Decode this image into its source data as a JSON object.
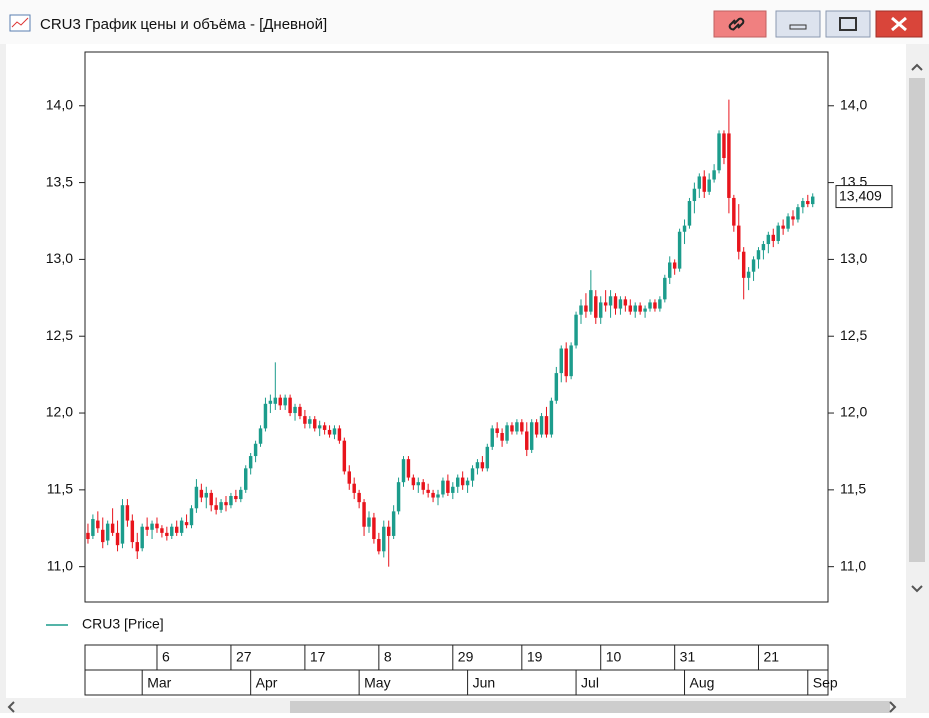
{
  "window_title": "CRU3 График цены и объёма - [Дневной]",
  "chart_data": {
    "type": "candlestick",
    "legend": "CRU3 [Price]",
    "up_color": "#1c9c8c",
    "down_color": "#e8141c",
    "ylim": [
      10.77,
      14.35
    ],
    "yticks": [
      {
        "value": 11,
        "label": "11,0"
      },
      {
        "value": 11.5,
        "label": "11,5"
      },
      {
        "value": 12,
        "label": "12,0"
      },
      {
        "value": 12.5,
        "label": "12,5"
      },
      {
        "value": 13,
        "label": "13,0"
      },
      {
        "value": 13.5,
        "label": "13,5"
      },
      {
        "value": 14,
        "label": "14,0"
      }
    ],
    "last_price": {
      "value": 13.409,
      "label": "13,409"
    },
    "xlim": [
      -0.6,
      150.1
    ],
    "xticks": [
      {
        "value": 14,
        "label": "6"
      },
      {
        "value": 29,
        "label": "27"
      },
      {
        "value": 44,
        "label": "17"
      },
      {
        "value": 59,
        "label": "8"
      },
      {
        "value": 74,
        "label": "29"
      },
      {
        "value": 88,
        "label": "19"
      },
      {
        "value": 104,
        "label": "10"
      },
      {
        "value": 119,
        "label": "31"
      },
      {
        "value": 136,
        "label": "21"
      }
    ],
    "month_ticks": [
      {
        "value": 11,
        "label": "Mar"
      },
      {
        "value": 33,
        "label": "Apr"
      },
      {
        "value": 55,
        "label": "May"
      },
      {
        "value": 77,
        "label": "Jun"
      },
      {
        "value": 99,
        "label": "Jul"
      },
      {
        "value": 121,
        "label": "Aug"
      },
      {
        "value": 146,
        "label": "Sep"
      }
    ],
    "x": [
      0,
      1,
      2,
      3,
      4,
      5,
      6,
      7,
      8,
      9,
      10,
      11,
      12,
      13,
      14,
      15,
      16,
      17,
      18,
      19,
      20,
      21,
      22,
      23,
      24,
      25,
      26,
      27,
      28,
      29,
      30,
      31,
      32,
      33,
      34,
      35,
      36,
      37,
      38,
      39,
      40,
      41,
      42,
      43,
      44,
      45,
      46,
      47,
      48,
      49,
      50,
      51,
      52,
      53,
      54,
      55,
      56,
      57,
      58,
      59,
      60,
      61,
      62,
      63,
      64,
      65,
      66,
      67,
      68,
      69,
      70,
      71,
      72,
      73,
      74,
      75,
      76,
      77,
      78,
      79,
      80,
      81,
      82,
      83,
      84,
      85,
      86,
      87,
      88,
      89,
      90,
      91,
      92,
      93,
      94,
      95,
      96,
      97,
      98,
      99,
      100,
      101,
      102,
      103,
      104,
      105,
      106,
      107,
      108,
      109,
      110,
      111,
      112,
      113,
      114,
      115,
      116,
      117,
      118,
      119,
      120,
      121,
      122,
      123,
      124,
      125,
      126,
      127,
      128,
      129,
      130,
      131,
      132,
      133,
      134,
      135,
      136,
      137,
      138,
      139,
      140,
      141,
      142,
      143,
      144,
      145,
      146,
      147
    ],
    "ohlc": [
      [
        11.22,
        11.28,
        11.15,
        11.18
      ],
      [
        11.2,
        11.34,
        11.18,
        11.31
      ],
      [
        11.3,
        11.36,
        11.22,
        11.25
      ],
      [
        11.24,
        11.32,
        11.12,
        11.16
      ],
      [
        11.17,
        11.3,
        11.14,
        11.28
      ],
      [
        11.28,
        11.38,
        11.2,
        11.22
      ],
      [
        11.22,
        11.3,
        11.1,
        11.14
      ],
      [
        11.15,
        11.44,
        11.12,
        11.4
      ],
      [
        11.4,
        11.44,
        11.26,
        11.3
      ],
      [
        11.3,
        11.34,
        11.12,
        11.16
      ],
      [
        11.16,
        11.22,
        11.05,
        11.1
      ],
      [
        11.12,
        11.28,
        11.1,
        11.26
      ],
      [
        11.26,
        11.32,
        11.2,
        11.24
      ],
      [
        11.24,
        11.3,
        11.18,
        11.28
      ],
      [
        11.28,
        11.32,
        11.22,
        11.25
      ],
      [
        11.25,
        11.27,
        11.19,
        11.22
      ],
      [
        11.22,
        11.26,
        11.17,
        11.2
      ],
      [
        11.2,
        11.28,
        11.18,
        11.26
      ],
      [
        11.26,
        11.3,
        11.2,
        11.22
      ],
      [
        11.22,
        11.32,
        11.2,
        11.3
      ],
      [
        11.29,
        11.34,
        11.25,
        11.27
      ],
      [
        11.27,
        11.4,
        11.25,
        11.38
      ],
      [
        11.38,
        11.57,
        11.35,
        11.52
      ],
      [
        11.5,
        11.54,
        11.42,
        11.45
      ],
      [
        11.45,
        11.52,
        11.38,
        11.48
      ],
      [
        11.48,
        11.5,
        11.36,
        11.4
      ],
      [
        11.4,
        11.45,
        11.34,
        11.37
      ],
      [
        11.37,
        11.44,
        11.35,
        11.42
      ],
      [
        11.42,
        11.46,
        11.36,
        11.4
      ],
      [
        11.4,
        11.48,
        11.38,
        11.46
      ],
      [
        11.46,
        11.5,
        11.42,
        11.44
      ],
      [
        11.44,
        11.52,
        11.42,
        11.5
      ],
      [
        11.5,
        11.66,
        11.48,
        11.64
      ],
      [
        11.64,
        11.74,
        11.6,
        11.72
      ],
      [
        11.72,
        11.82,
        11.68,
        11.8
      ],
      [
        11.8,
        11.92,
        11.78,
        11.9
      ],
      [
        11.9,
        12.1,
        11.88,
        12.06
      ],
      [
        12.06,
        12.12,
        12.0,
        12.08
      ],
      [
        12.06,
        12.33,
        12.02,
        12.1
      ],
      [
        12.1,
        12.12,
        12.02,
        12.05
      ],
      [
        12.05,
        12.12,
        12.02,
        12.1
      ],
      [
        12.1,
        12.12,
        11.98,
        12.0
      ],
      [
        12.0,
        12.06,
        11.95,
        12.04
      ],
      [
        12.04,
        12.06,
        11.96,
        11.98
      ],
      [
        11.98,
        12.02,
        11.9,
        11.93
      ],
      [
        11.93,
        11.98,
        11.9,
        11.96
      ],
      [
        11.96,
        11.98,
        11.88,
        11.9
      ],
      [
        11.9,
        11.95,
        11.85,
        11.92
      ],
      [
        11.92,
        11.94,
        11.86,
        11.89
      ],
      [
        11.89,
        11.92,
        11.84,
        11.86
      ],
      [
        11.86,
        11.92,
        11.83,
        11.9
      ],
      [
        11.9,
        11.92,
        11.8,
        11.82
      ],
      [
        11.82,
        11.84,
        11.6,
        11.62
      ],
      [
        11.62,
        11.66,
        11.5,
        11.54
      ],
      [
        11.54,
        11.58,
        11.44,
        11.48
      ],
      [
        11.48,
        11.5,
        11.38,
        11.42
      ],
      [
        11.42,
        11.44,
        11.2,
        11.26
      ],
      [
        11.26,
        11.36,
        11.22,
        11.32
      ],
      [
        11.32,
        11.35,
        11.15,
        11.18
      ],
      [
        11.18,
        11.22,
        11.08,
        11.1
      ],
      [
        11.1,
        11.3,
        11.06,
        11.26
      ],
      [
        11.26,
        11.3,
        11.0,
        11.2
      ],
      [
        11.2,
        11.4,
        11.18,
        11.36
      ],
      [
        11.36,
        11.58,
        11.34,
        11.55
      ],
      [
        11.55,
        11.72,
        11.52,
        11.7
      ],
      [
        11.7,
        11.72,
        11.56,
        11.58
      ],
      [
        11.58,
        11.6,
        11.5,
        11.53
      ],
      [
        11.53,
        11.58,
        11.48,
        11.55
      ],
      [
        11.55,
        11.57,
        11.47,
        11.5
      ],
      [
        11.5,
        11.54,
        11.45,
        11.48
      ],
      [
        11.48,
        11.5,
        11.42,
        11.45
      ],
      [
        11.45,
        11.5,
        11.4,
        11.47
      ],
      [
        11.47,
        11.58,
        11.45,
        11.56
      ],
      [
        11.56,
        11.6,
        11.46,
        11.48
      ],
      [
        11.48,
        11.55,
        11.44,
        11.52
      ],
      [
        11.52,
        11.6,
        11.48,
        11.58
      ],
      [
        11.58,
        11.62,
        11.5,
        11.53
      ],
      [
        11.53,
        11.58,
        11.48,
        11.56
      ],
      [
        11.56,
        11.66,
        11.52,
        11.64
      ],
      [
        11.64,
        11.7,
        11.6,
        11.68
      ],
      [
        11.68,
        11.72,
        11.62,
        11.64
      ],
      [
        11.64,
        11.8,
        11.62,
        11.78
      ],
      [
        11.78,
        11.92,
        11.76,
        11.9
      ],
      [
        11.9,
        11.94,
        11.84,
        11.87
      ],
      [
        11.87,
        11.9,
        11.78,
        11.82
      ],
      [
        11.82,
        11.94,
        11.8,
        11.92
      ],
      [
        11.92,
        11.94,
        11.86,
        11.88
      ],
      [
        11.88,
        11.96,
        11.86,
        11.94
      ],
      [
        11.94,
        11.96,
        11.86,
        11.88
      ],
      [
        11.88,
        11.94,
        11.72,
        11.76
      ],
      [
        11.76,
        11.96,
        11.74,
        11.94
      ],
      [
        11.94,
        11.96,
        11.84,
        11.86
      ],
      [
        11.86,
        12.0,
        11.84,
        11.98
      ],
      [
        11.98,
        12.04,
        11.84,
        11.86
      ],
      [
        11.86,
        12.1,
        11.84,
        12.08
      ],
      [
        12.08,
        12.3,
        12.06,
        12.26
      ],
      [
        12.26,
        12.44,
        12.2,
        12.42
      ],
      [
        12.42,
        12.46,
        12.2,
        12.24
      ],
      [
        12.24,
        12.46,
        12.22,
        12.44
      ],
      [
        12.44,
        12.66,
        12.42,
        12.64
      ],
      [
        12.64,
        12.74,
        12.58,
        12.7
      ],
      [
        12.7,
        12.78,
        12.62,
        12.66
      ],
      [
        12.66,
        12.93,
        12.64,
        12.8
      ],
      [
        12.76,
        12.8,
        12.58,
        12.62
      ],
      [
        12.62,
        12.76,
        12.58,
        12.72
      ],
      [
        12.72,
        12.8,
        12.66,
        12.7
      ],
      [
        12.7,
        12.8,
        12.62,
        12.76
      ],
      [
        12.76,
        12.78,
        12.64,
        12.68
      ],
      [
        12.68,
        12.76,
        12.64,
        12.74
      ],
      [
        12.74,
        12.76,
        12.66,
        12.7
      ],
      [
        12.7,
        12.74,
        12.64,
        12.66
      ],
      [
        12.66,
        12.72,
        12.62,
        12.7
      ],
      [
        12.7,
        12.72,
        12.64,
        12.66
      ],
      [
        12.66,
        12.7,
        12.62,
        12.68
      ],
      [
        12.68,
        12.74,
        12.66,
        12.72
      ],
      [
        12.72,
        12.74,
        12.66,
        12.68
      ],
      [
        12.68,
        12.76,
        12.66,
        12.74
      ],
      [
        12.74,
        12.9,
        12.72,
        12.88
      ],
      [
        12.88,
        13.02,
        12.84,
        12.98
      ],
      [
        12.98,
        13.0,
        12.9,
        12.94
      ],
      [
        12.94,
        13.2,
        12.92,
        13.18
      ],
      [
        13.18,
        13.26,
        13.1,
        13.22
      ],
      [
        13.22,
        13.4,
        13.2,
        13.38
      ],
      [
        13.38,
        13.5,
        13.3,
        13.46
      ],
      [
        13.46,
        13.56,
        13.4,
        13.54
      ],
      [
        13.54,
        13.58,
        13.4,
        13.44
      ],
      [
        13.44,
        13.56,
        13.42,
        13.52
      ],
      [
        13.52,
        13.62,
        13.5,
        13.58
      ],
      [
        13.58,
        13.84,
        13.56,
        13.82
      ],
      [
        13.82,
        13.84,
        13.62,
        13.66
      ],
      [
        13.82,
        14.04,
        13.3,
        13.4
      ],
      [
        13.4,
        13.42,
        13.18,
        13.22
      ],
      [
        13.22,
        13.36,
        13.0,
        13.05
      ],
      [
        13.05,
        13.08,
        12.74,
        12.88
      ],
      [
        12.88,
        12.95,
        12.8,
        12.92
      ],
      [
        12.92,
        13.02,
        12.86,
        13.0
      ],
      [
        13.0,
        13.08,
        12.94,
        13.06
      ],
      [
        13.06,
        13.12,
        13.0,
        13.1
      ],
      [
        13.1,
        13.18,
        13.04,
        13.16
      ],
      [
        13.16,
        13.2,
        13.08,
        13.12
      ],
      [
        13.12,
        13.24,
        13.1,
        13.22
      ],
      [
        13.22,
        13.26,
        13.16,
        13.2
      ],
      [
        13.2,
        13.3,
        13.18,
        13.28
      ],
      [
        13.28,
        13.32,
        13.22,
        13.26
      ],
      [
        13.26,
        13.36,
        13.24,
        13.34
      ],
      [
        13.34,
        13.4,
        13.3,
        13.38
      ],
      [
        13.38,
        13.42,
        13.34,
        13.36
      ],
      [
        13.36,
        13.43,
        13.34,
        13.409
      ]
    ]
  }
}
